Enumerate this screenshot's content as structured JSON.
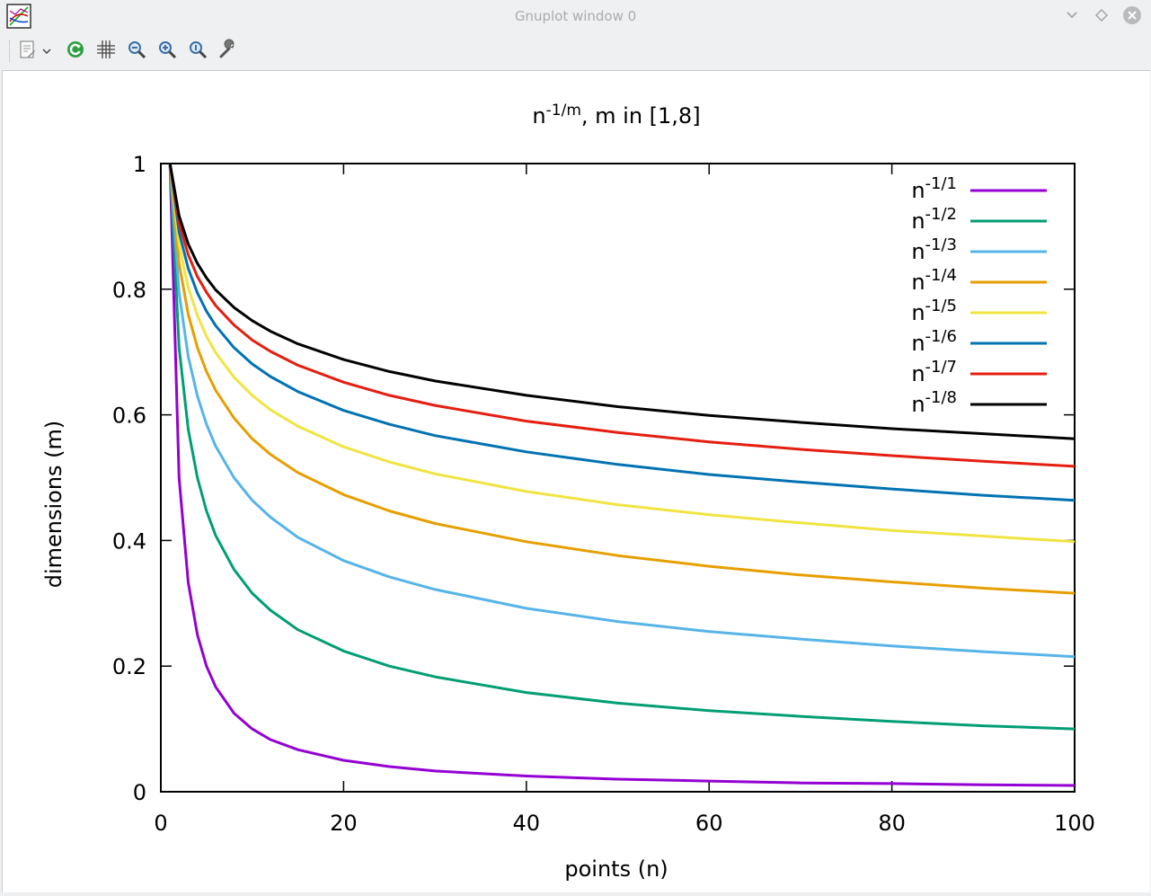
{
  "window": {
    "title": "Gnuplot window 0",
    "app_icon": "gnuplot-icon",
    "buttons": [
      "minimize",
      "maximize",
      "close"
    ]
  },
  "toolbar": {
    "items": [
      {
        "name": "copy-to-clipboard-icon"
      },
      {
        "name": "dropdown-chevron-icon"
      },
      {
        "name": "replot-icon"
      },
      {
        "name": "grid-icon"
      },
      {
        "name": "zoom-previous-icon"
      },
      {
        "name": "zoom-next-icon"
      },
      {
        "name": "zoom-autoscale-icon"
      },
      {
        "name": "configure-wrench-icon"
      }
    ]
  },
  "chart_data": {
    "type": "line",
    "title_base": "n",
    "title_sup": "-1/m",
    "title_rest": ", m in [1,8]",
    "xlabel": "points (n)",
    "ylabel": "dimensions (m)",
    "xlim": [
      0,
      100
    ],
    "ylim": [
      0,
      1
    ],
    "xticks": [
      0,
      20,
      40,
      60,
      80,
      100
    ],
    "yticks": [
      0,
      0.2,
      0.4,
      0.6,
      0.8,
      1
    ],
    "ytick_labels": [
      "0",
      "0.2",
      "0.4",
      "0.6",
      "0.8",
      "1"
    ],
    "grid": false,
    "legend_position": "top-right",
    "x_sampled": [
      1,
      2,
      3,
      4,
      5,
      6,
      8,
      10,
      12,
      15,
      20,
      25,
      30,
      40,
      50,
      60,
      70,
      80,
      90,
      100
    ],
    "series": [
      {
        "name_base": "n",
        "name_sup": "-1/1",
        "color": "#9400d3",
        "values": [
          1.0,
          0.5,
          0.333,
          0.25,
          0.2,
          0.167,
          0.125,
          0.1,
          0.083,
          0.067,
          0.05,
          0.04,
          0.033,
          0.025,
          0.02,
          0.017,
          0.014,
          0.013,
          0.011,
          0.01
        ]
      },
      {
        "name_base": "n",
        "name_sup": "-1/2",
        "color": "#009e73",
        "values": [
          1.0,
          0.707,
          0.577,
          0.5,
          0.447,
          0.408,
          0.354,
          0.316,
          0.289,
          0.258,
          0.224,
          0.2,
          0.183,
          0.158,
          0.141,
          0.129,
          0.12,
          0.112,
          0.105,
          0.1
        ]
      },
      {
        "name_base": "n",
        "name_sup": "-1/3",
        "color": "#56b4e9",
        "values": [
          1.0,
          0.794,
          0.693,
          0.63,
          0.585,
          0.55,
          0.5,
          0.464,
          0.437,
          0.405,
          0.368,
          0.342,
          0.322,
          0.292,
          0.271,
          0.255,
          0.243,
          0.232,
          0.223,
          0.215
        ]
      },
      {
        "name_base": "n",
        "name_sup": "-1/4",
        "color": "#e69f00",
        "values": [
          1.0,
          0.841,
          0.76,
          0.707,
          0.669,
          0.639,
          0.595,
          0.562,
          0.537,
          0.508,
          0.473,
          0.447,
          0.427,
          0.398,
          0.376,
          0.359,
          0.345,
          0.334,
          0.324,
          0.316
        ]
      },
      {
        "name_base": "n",
        "name_sup": "-1/5",
        "color": "#f0e442",
        "values": [
          1.0,
          0.871,
          0.803,
          0.758,
          0.725,
          0.699,
          0.66,
          0.631,
          0.608,
          0.582,
          0.549,
          0.525,
          0.506,
          0.478,
          0.457,
          0.441,
          0.428,
          0.416,
          0.407,
          0.398
        ]
      },
      {
        "name_base": "n",
        "name_sup": "-1/6",
        "color": "#0072b2",
        "values": [
          1.0,
          0.891,
          0.833,
          0.794,
          0.765,
          0.742,
          0.707,
          0.681,
          0.661,
          0.637,
          0.607,
          0.585,
          0.567,
          0.541,
          0.521,
          0.505,
          0.493,
          0.482,
          0.472,
          0.464
        ]
      },
      {
        "name_base": "n",
        "name_sup": "-1/7",
        "color": "#e51e10",
        "values": [
          1.0,
          0.906,
          0.855,
          0.82,
          0.795,
          0.774,
          0.743,
          0.719,
          0.701,
          0.679,
          0.652,
          0.631,
          0.615,
          0.59,
          0.572,
          0.557,
          0.545,
          0.535,
          0.526,
          0.518
        ]
      },
      {
        "name_base": "n",
        "name_sup": "-1/8",
        "color": "#000000",
        "values": [
          1.0,
          0.917,
          0.872,
          0.841,
          0.818,
          0.799,
          0.771,
          0.75,
          0.733,
          0.713,
          0.688,
          0.669,
          0.654,
          0.631,
          0.613,
          0.599,
          0.588,
          0.578,
          0.57,
          0.562
        ]
      }
    ]
  }
}
